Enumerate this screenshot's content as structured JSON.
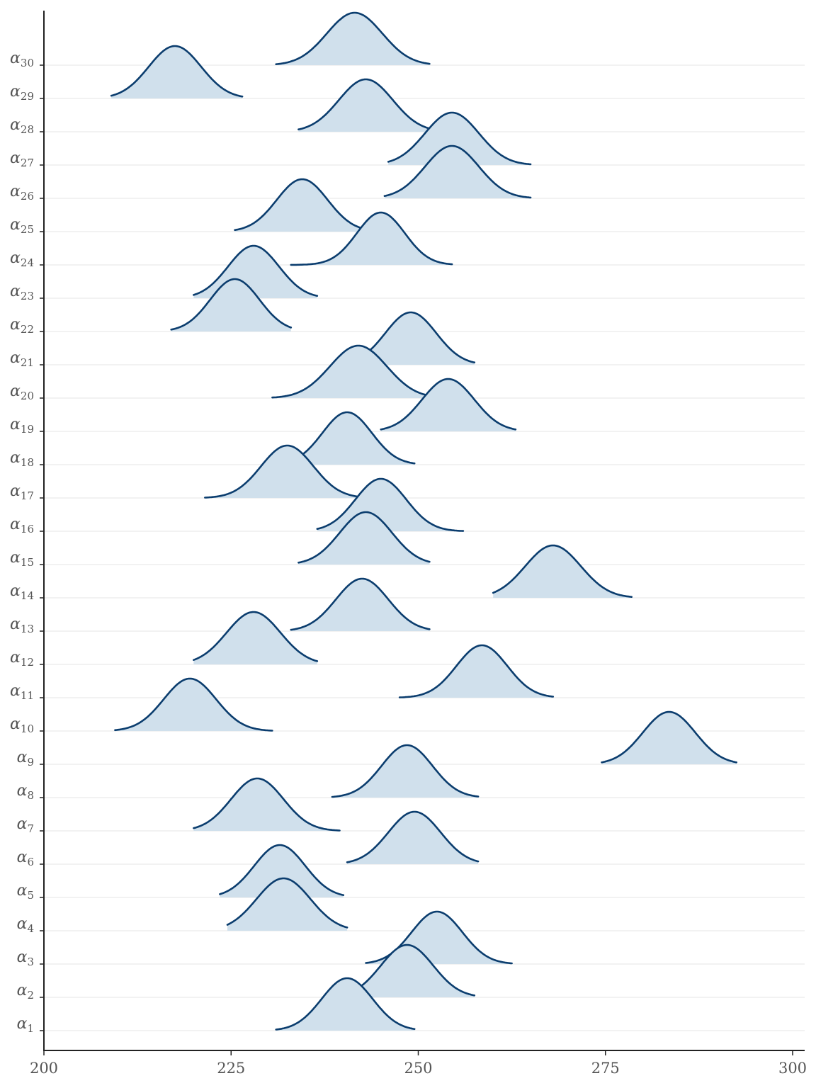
{
  "chart_data": {
    "type": "ridgeline",
    "title": "",
    "xlabel": "",
    "ylabel": "",
    "xlim": [
      200,
      302
    ],
    "x_ticks": [
      200,
      225,
      250,
      275,
      300
    ],
    "grid": "horizontal baselines",
    "legend": "none",
    "colors": {
      "fill": "#d0e0ec",
      "line": "#0b3d6e",
      "axis": "#222222",
      "grid": "#e6e6e6"
    },
    "series": [
      {
        "label": "α",
        "sub": "1",
        "mean": 240.5,
        "sd": 3.4,
        "min": 231.0,
        "max": 249.5
      },
      {
        "label": "α",
        "sub": "2",
        "mean": 248.5,
        "sd": 3.5,
        "min": 239.5,
        "max": 257.5
      },
      {
        "label": "α",
        "sub": "3",
        "mean": 252.5,
        "sd": 3.4,
        "min": 243.0,
        "max": 262.5
      },
      {
        "label": "α",
        "sub": "4",
        "mean": 232.0,
        "sd": 3.6,
        "min": 224.5,
        "max": 240.5
      },
      {
        "label": "α",
        "sub": "5",
        "mean": 231.5,
        "sd": 3.4,
        "min": 223.5,
        "max": 240.0
      },
      {
        "label": "α",
        "sub": "6",
        "mean": 249.5,
        "sd": 3.5,
        "min": 240.5,
        "max": 258.0
      },
      {
        "label": "α",
        "sub": "7",
        "mean": 228.5,
        "sd": 3.5,
        "min": 220.0,
        "max": 239.5
      },
      {
        "label": "α",
        "sub": "8",
        "mean": 248.5,
        "sd": 3.4,
        "min": 238.5,
        "max": 258.0
      },
      {
        "label": "α",
        "sub": "9",
        "mean": 283.5,
        "sd": 3.5,
        "min": 274.5,
        "max": 292.5
      },
      {
        "label": "α",
        "sub": "10",
        "mean": 219.5,
        "sd": 3.5,
        "min": 209.5,
        "max": 230.5
      },
      {
        "label": "α",
        "sub": "11",
        "mean": 258.5,
        "sd": 3.4,
        "min": 247.5,
        "max": 268.0
      },
      {
        "label": "α",
        "sub": "12",
        "mean": 228.0,
        "sd": 3.6,
        "min": 220.0,
        "max": 236.5
      },
      {
        "label": "α",
        "sub": "13",
        "mean": 242.5,
        "sd": 3.5,
        "min": 233.0,
        "max": 251.5
      },
      {
        "label": "α",
        "sub": "14",
        "mean": 268.0,
        "sd": 3.7,
        "min": 260.0,
        "max": 278.5
      },
      {
        "label": "α",
        "sub": "15",
        "mean": 243.0,
        "sd": 3.5,
        "min": 234.0,
        "max": 251.5
      },
      {
        "label": "α",
        "sub": "16",
        "mean": 245.0,
        "sd": 3.4,
        "min": 236.5,
        "max": 256.0
      },
      {
        "label": "α",
        "sub": "17",
        "mean": 232.5,
        "sd": 3.5,
        "min": 221.5,
        "max": 242.0
      },
      {
        "label": "α",
        "sub": "18",
        "mean": 240.5,
        "sd": 3.3,
        "min": 231.0,
        "max": 249.5
      },
      {
        "label": "α",
        "sub": "19",
        "mean": 254.0,
        "sd": 3.5,
        "min": 245.0,
        "max": 263.0
      },
      {
        "label": "α",
        "sub": "20",
        "mean": 242.0,
        "sd": 3.8,
        "min": 230.5,
        "max": 251.5
      },
      {
        "label": "α",
        "sub": "21",
        "mean": 249.0,
        "sd": 3.4,
        "min": 240.0,
        "max": 257.5
      },
      {
        "label": "α",
        "sub": "22",
        "mean": 225.5,
        "sd": 3.3,
        "min": 217.0,
        "max": 233.0
      },
      {
        "label": "α",
        "sub": "23",
        "mean": 228.0,
        "sd": 3.4,
        "min": 220.0,
        "max": 236.5
      },
      {
        "label": "α",
        "sub": "24",
        "mean": 245.0,
        "sd": 3.2,
        "min": 233.0,
        "max": 254.5
      },
      {
        "label": "α",
        "sub": "25",
        "mean": 234.5,
        "sd": 3.4,
        "min": 225.5,
        "max": 243.5
      },
      {
        "label": "α",
        "sub": "26",
        "mean": 254.5,
        "sd": 3.6,
        "min": 245.5,
        "max": 265.0
      },
      {
        "label": "α",
        "sub": "27",
        "mean": 254.5,
        "sd": 3.6,
        "min": 246.0,
        "max": 265.0
      },
      {
        "label": "α",
        "sub": "28",
        "mean": 243.0,
        "sd": 3.6,
        "min": 234.0,
        "max": 252.5
      },
      {
        "label": "α",
        "sub": "29",
        "mean": 217.5,
        "sd": 3.5,
        "min": 209.0,
        "max": 226.5
      },
      {
        "label": "α",
        "sub": "30",
        "mean": 241.5,
        "sd": 3.7,
        "min": 231.0,
        "max": 251.5
      }
    ]
  }
}
